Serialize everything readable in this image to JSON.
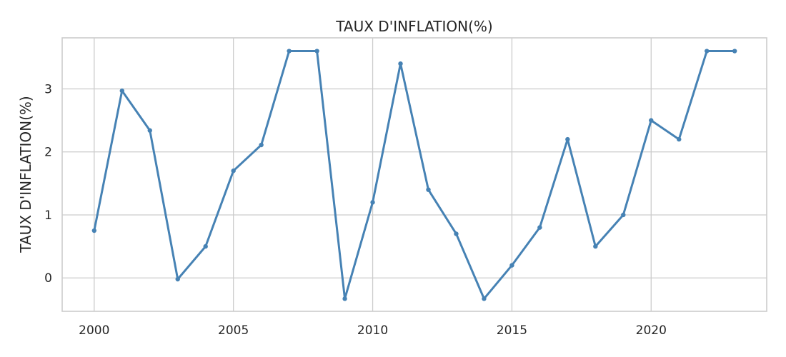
{
  "chart_data": {
    "type": "line",
    "title": "TAUX D'INFLATION(%)",
    "xlabel": "",
    "ylabel": "TAUX D'INFLATION(%)",
    "x": [
      2000,
      2001,
      2002,
      2003,
      2004,
      2005,
      2006,
      2007,
      2008,
      2009,
      2010,
      2011,
      2012,
      2013,
      2014,
      2015,
      2016,
      2017,
      2018,
      2019,
      2020,
      2021,
      2022,
      2023
    ],
    "series": [
      {
        "values": [
          0.75,
          2.97,
          2.34,
          -0.02,
          0.5,
          1.7,
          2.11,
          3.6,
          3.6,
          -0.33,
          1.2,
          3.4,
          1.4,
          0.7,
          -0.33,
          0.2,
          0.8,
          2.2,
          0.5,
          1.0,
          2.5,
          2.2,
          3.6,
          3.6
        ]
      }
    ],
    "xticks": [
      "2000",
      "2005",
      "2010",
      "2015",
      "2020"
    ],
    "yticks": [
      "0",
      "1",
      "2",
      "3"
    ],
    "xlim": [
      1998.85,
      2024.15
    ],
    "ylim": [
      -0.53,
      3.81
    ],
    "grid": true,
    "colors": {
      "line": "#4682b4",
      "grid": "#cccccc",
      "text": "#262626"
    }
  }
}
